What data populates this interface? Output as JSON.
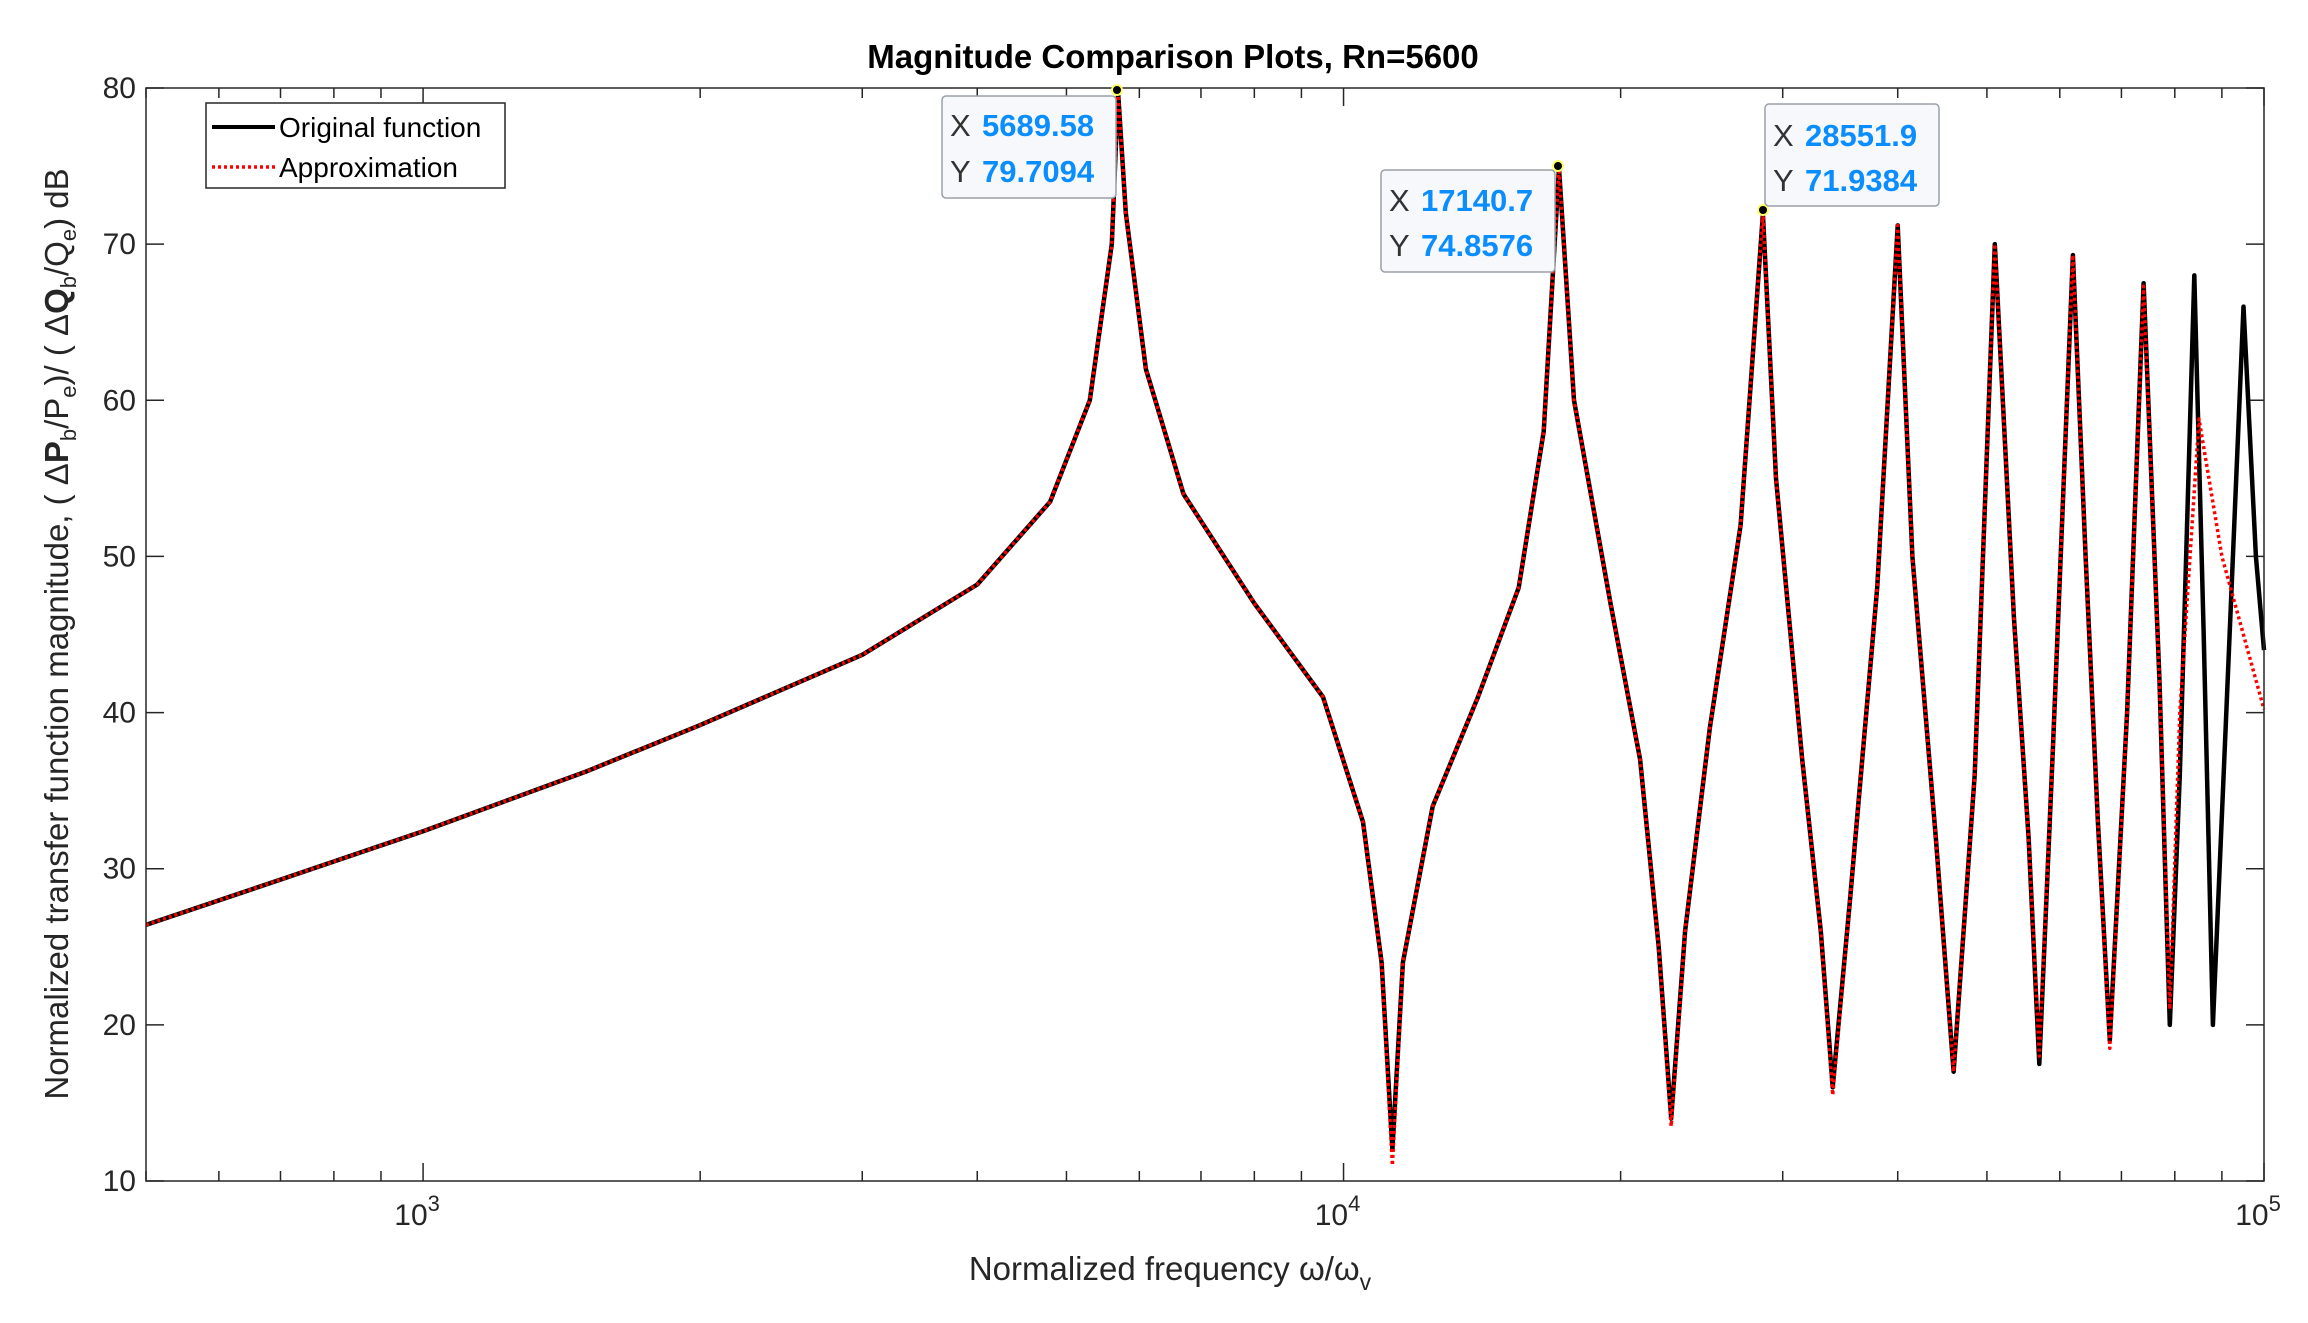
{
  "chart_data": {
    "type": "line",
    "title": "Magnitude Comparison Plots, Rn=5600",
    "xlabel": "Normalized frequency ω/ω",
    "xlabel_sub": "v",
    "ylabel": "Normalized transfer function magnitude,  ( ΔP",
    "ylabel_parts": [
      "Normalized transfer function magnitude,  ( Δ",
      "P",
      "b",
      "/P",
      "e",
      ")/ ( Δ",
      "Q",
      "b",
      "/Q",
      "e",
      ") dB"
    ],
    "x_scale": "log",
    "xlim": [
      500,
      100000
    ],
    "ylim": [
      10,
      80
    ],
    "y_ticks": [
      10,
      20,
      30,
      40,
      50,
      60,
      70,
      80
    ],
    "y_tick_labels": [
      "10",
      "20",
      "30",
      "40",
      "50",
      "60",
      "70",
      "80"
    ],
    "x_ticks": [
      1000,
      10000,
      100000
    ],
    "x_tick_labels": [
      {
        "base": "10",
        "exp": "3"
      },
      {
        "base": "10",
        "exp": "4"
      },
      {
        "base": "10",
        "exp": "5"
      }
    ],
    "legend": {
      "position": "top-left",
      "entries": [
        "Original function",
        "Approximation"
      ]
    },
    "series": [
      {
        "name": "Original function",
        "color": "#000000",
        "style": "solid",
        "points": [
          [
            500,
            26.4
          ],
          [
            700,
            29.3
          ],
          [
            1000,
            32.4
          ],
          [
            1500,
            36.2
          ],
          [
            2000,
            39.2
          ],
          [
            3000,
            43.7
          ],
          [
            4000,
            48.2
          ],
          [
            4800,
            53.5
          ],
          [
            5300,
            60
          ],
          [
            5600,
            70
          ],
          [
            5689.58,
            79.7094
          ],
          [
            5800,
            72
          ],
          [
            6100,
            62
          ],
          [
            6700,
            54
          ],
          [
            8000,
            47
          ],
          [
            9500,
            41
          ],
          [
            10500,
            33
          ],
          [
            11000,
            24
          ],
          [
            11300,
            12
          ],
          [
            11600,
            24
          ],
          [
            12500,
            34
          ],
          [
            14000,
            41
          ],
          [
            15500,
            48
          ],
          [
            16500,
            58
          ],
          [
            17140.7,
            74.8576
          ],
          [
            17800,
            60
          ],
          [
            19500,
            47
          ],
          [
            21000,
            37
          ],
          [
            22000,
            25
          ],
          [
            22700,
            14
          ],
          [
            23500,
            26
          ],
          [
            25000,
            39
          ],
          [
            27000,
            52
          ],
          [
            28551.9,
            71.9384
          ],
          [
            29500,
            55
          ],
          [
            31500,
            37
          ],
          [
            33000,
            26
          ],
          [
            34000,
            16
          ],
          [
            35500,
            28
          ],
          [
            38000,
            48
          ],
          [
            40000,
            71.2
          ],
          [
            41500,
            50
          ],
          [
            44000,
            32
          ],
          [
            46000,
            17
          ],
          [
            48500,
            36
          ],
          [
            51000,
            70
          ],
          [
            53500,
            46
          ],
          [
            55500,
            32
          ],
          [
            57000,
            17.5
          ],
          [
            59000,
            38
          ],
          [
            62000,
            69.3
          ],
          [
            64000,
            50
          ],
          [
            66000,
            33
          ],
          [
            68000,
            19
          ],
          [
            71000,
            40
          ],
          [
            74000,
            67.5
          ],
          [
            77000,
            42
          ],
          [
            79000,
            20
          ],
          [
            81000,
            36
          ],
          [
            84000,
            68
          ],
          [
            86000,
            45
          ],
          [
            88000,
            20
          ],
          [
            91000,
            40
          ],
          [
            95000,
            66
          ],
          [
            98000,
            50
          ],
          [
            100000,
            44
          ]
        ]
      },
      {
        "name": "Approximation",
        "color": "#ff0000",
        "style": "dotted",
        "points": [
          [
            500,
            26.4
          ],
          [
            700,
            29.3
          ],
          [
            1000,
            32.4
          ],
          [
            1500,
            36.2
          ],
          [
            2000,
            39.2
          ],
          [
            3000,
            43.7
          ],
          [
            4000,
            48.2
          ],
          [
            4800,
            53.5
          ],
          [
            5300,
            60
          ],
          [
            5600,
            70
          ],
          [
            5689.58,
            79.7094
          ],
          [
            5800,
            72
          ],
          [
            6100,
            62
          ],
          [
            6700,
            54
          ],
          [
            8000,
            47
          ],
          [
            9500,
            41
          ],
          [
            10500,
            33
          ],
          [
            11000,
            24
          ],
          [
            11300,
            11
          ],
          [
            11600,
            24
          ],
          [
            12500,
            34
          ],
          [
            14000,
            41
          ],
          [
            15500,
            48
          ],
          [
            16500,
            58
          ],
          [
            17140.7,
            74.8576
          ],
          [
            17800,
            60
          ],
          [
            19500,
            47
          ],
          [
            21000,
            37
          ],
          [
            22000,
            25
          ],
          [
            22700,
            13.5
          ],
          [
            23500,
            26
          ],
          [
            25000,
            39
          ],
          [
            27000,
            52
          ],
          [
            28551.9,
            71.9384
          ],
          [
            29500,
            55
          ],
          [
            31500,
            37
          ],
          [
            33000,
            26
          ],
          [
            34000,
            15.5
          ],
          [
            35500,
            28
          ],
          [
            38000,
            48
          ],
          [
            40000,
            71.2
          ],
          [
            41500,
            50
          ],
          [
            44000,
            32
          ],
          [
            46000,
            17
          ],
          [
            48500,
            36
          ],
          [
            51000,
            70
          ],
          [
            53500,
            46
          ],
          [
            55500,
            32
          ],
          [
            57000,
            18
          ],
          [
            59000,
            38
          ],
          [
            62000,
            69.3
          ],
          [
            64000,
            50
          ],
          [
            66000,
            33
          ],
          [
            68000,
            18.5
          ],
          [
            71000,
            40
          ],
          [
            74000,
            67.3
          ],
          [
            77000,
            42
          ],
          [
            79000,
            21
          ],
          [
            81000,
            40
          ],
          [
            85000,
            58.8
          ],
          [
            90000,
            50
          ],
          [
            100000,
            40.2
          ]
        ]
      }
    ],
    "datatips": [
      {
        "x_label": "X",
        "x_value": "5689.58",
        "y_label": "Y",
        "y_value": "79.7094",
        "x": 5689.58,
        "y": 79.7094
      },
      {
        "x_label": "X",
        "x_value": "17140.7",
        "y_label": "Y",
        "y_value": "74.8576",
        "x": 17140.7,
        "y": 74.8576
      },
      {
        "x_label": "X",
        "x_value": "28551.9",
        "y_label": "Y",
        "y_value": "71.9384",
        "x": 28551.9,
        "y": 71.9384
      }
    ]
  }
}
